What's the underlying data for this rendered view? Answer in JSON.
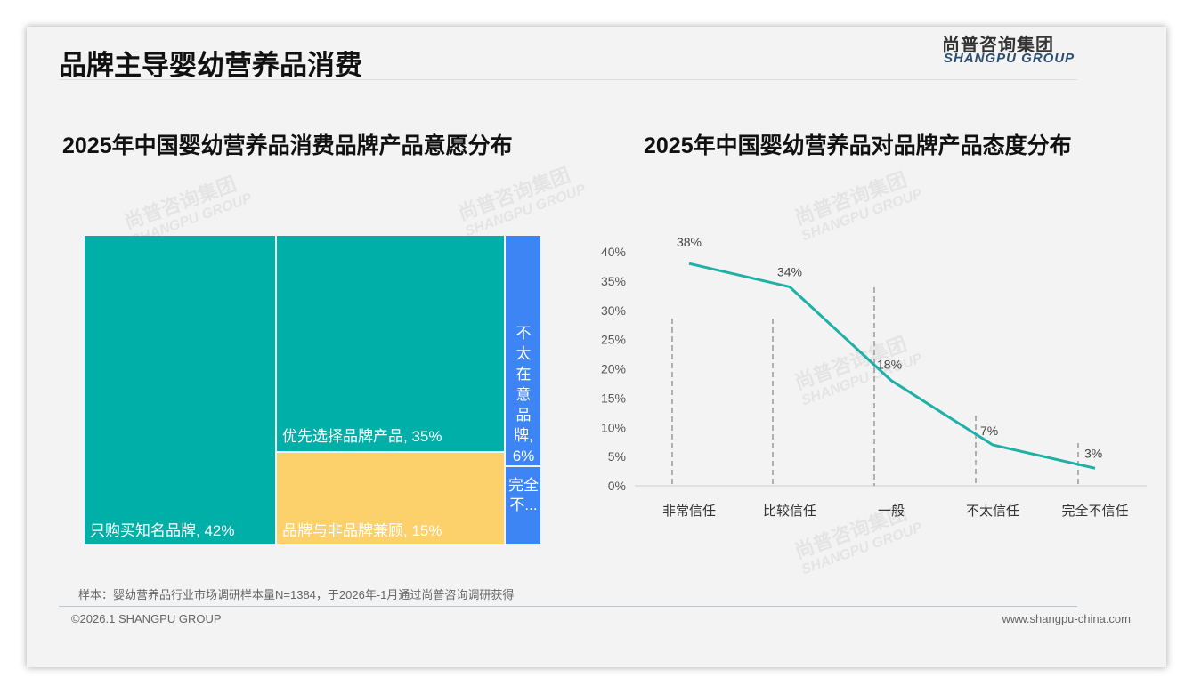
{
  "header": {
    "title": "品牌主导婴幼营养品消费",
    "logo_cn": "尚普咨询集团",
    "logo_en": "SHANGPU GROUP"
  },
  "colors": {
    "teal": "#00b0a8",
    "yellow": "#fcd06b",
    "blue": "#3d85f5",
    "line": "#1fb0a6"
  },
  "chart_data": [
    {
      "type": "treemap",
      "title": "2025年中国婴幼营养品消费品牌产品意愿分布",
      "items": [
        {
          "label": "只购买知名品牌, 42%",
          "name": "只购买知名品牌",
          "value": 42
        },
        {
          "label": "优先选择品牌产品, 35%",
          "name": "优先选择品牌产品",
          "value": 35
        },
        {
          "label": "品牌与非品牌兼顾, 15%",
          "name": "品牌与非品牌兼顾",
          "value": 15
        },
        {
          "label": "不太在意品牌, 6%",
          "name": "不太在意品牌",
          "value": 6
        },
        {
          "label": "完全不...",
          "name": "完全不在意品牌",
          "value": 2
        }
      ]
    },
    {
      "type": "line",
      "title": "2025年中国婴幼营养品对品牌产品态度分布",
      "categories": [
        "非常信任",
        "比较信任",
        "一般",
        "不太信任",
        "完全不信任"
      ],
      "values": [
        38,
        34,
        18,
        7,
        3
      ],
      "value_labels": [
        "38%",
        "34%",
        "18%",
        "7%",
        "3%"
      ],
      "ylim": [
        0,
        40
      ],
      "yticks": [
        "0%",
        "5%",
        "10%",
        "15%",
        "20%",
        "25%",
        "30%",
        "35%",
        "40%"
      ]
    }
  ],
  "footer": {
    "note": "样本：婴幼营养品行业市场调研样本量N=1384，于2026年-1月通过尚普咨询调研获得",
    "copyright": "©2026.1 SHANGPU GROUP",
    "url": "www.shangpu-china.com"
  },
  "watermark": {
    "cn": "尚普咨询集团",
    "en": "SHANGPU GROUP"
  }
}
